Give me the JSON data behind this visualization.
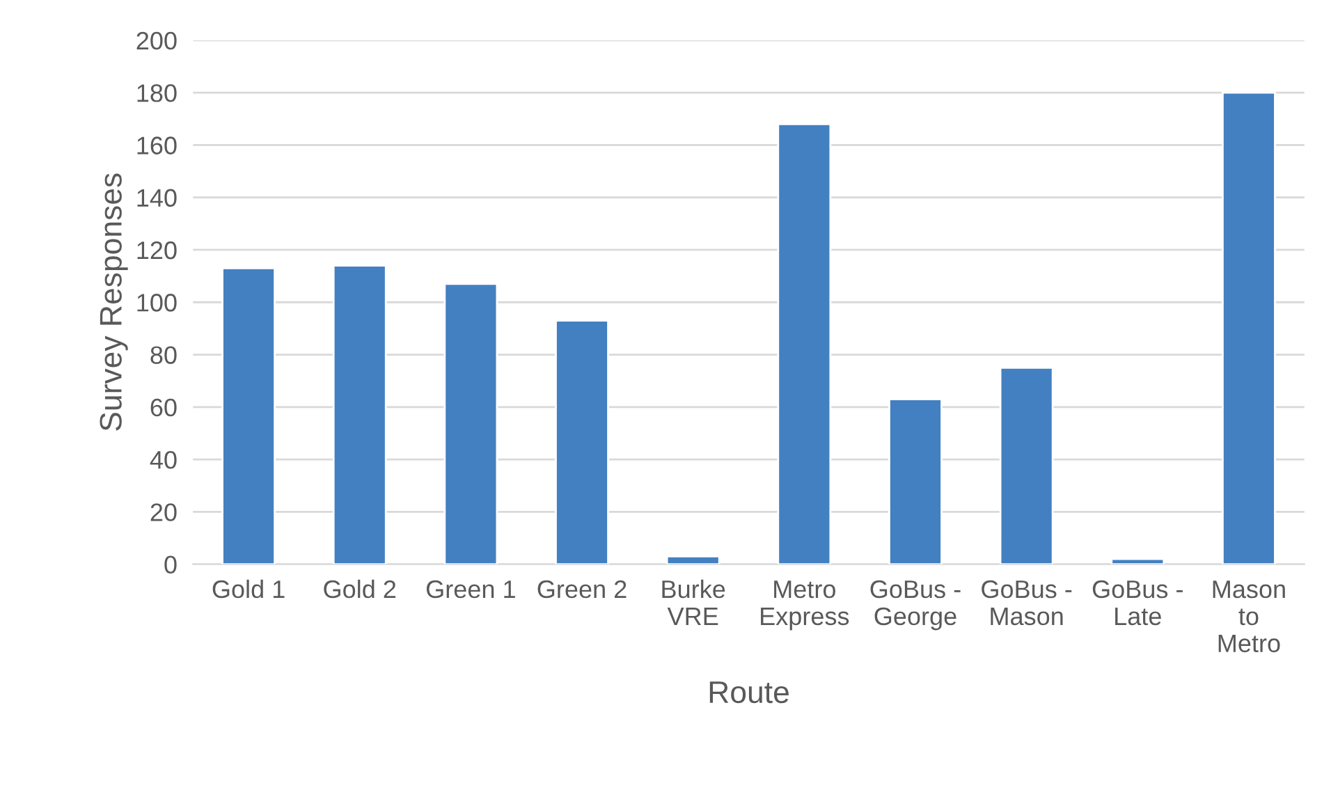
{
  "chart_data": {
    "type": "bar",
    "xlabel": "Route",
    "ylabel": "Survey Responses",
    "categories": [
      "Gold 1",
      "Gold 2",
      "Green 1",
      "Green 2",
      "Burke VRE",
      "Metro Express",
      "GoBus - George",
      "GoBus - Mason",
      "GoBus - Late",
      "Mason to Metro"
    ],
    "values": [
      113,
      114,
      107,
      93,
      3,
      168,
      63,
      75,
      2,
      180
    ],
    "color": "#4280c2",
    "ylim": [
      0,
      200
    ],
    "yticks": [
      0,
      20,
      40,
      60,
      80,
      100,
      120,
      140,
      160,
      180,
      200
    ],
    "grid": "y",
    "legend": false
  }
}
